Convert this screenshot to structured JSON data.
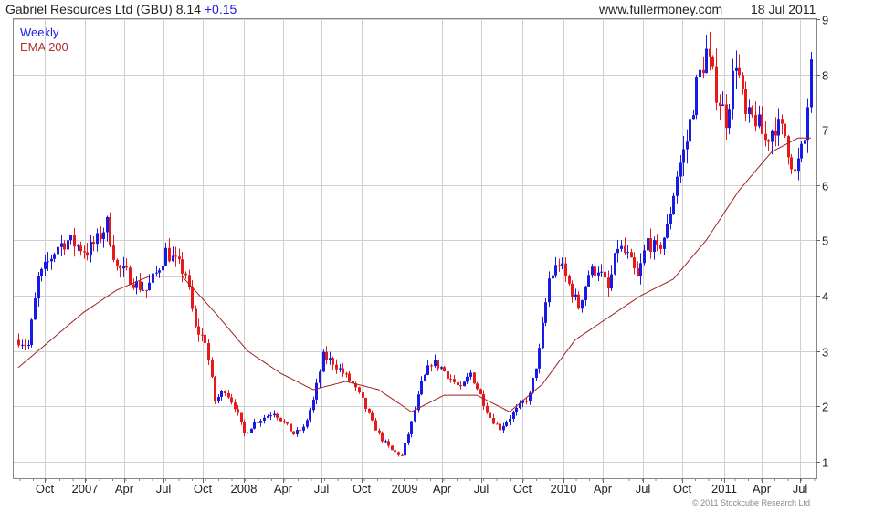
{
  "header": {
    "title": "Gabriel Resources Ltd (GBU) 8.14",
    "change": "+0.15",
    "source": "www.fullermoney.com",
    "date": "18 Jul 2011"
  },
  "footer": {
    "copyright": "© 2011 Stockcube Research Ltd"
  },
  "colors": {
    "up": "#1a1ae6",
    "down": "#e61a1a",
    "ema": "#a02020",
    "grid": "#d0d0d0"
  },
  "chart_data": {
    "type": "candlestick",
    "series": [
      {
        "name": "Weekly"
      },
      {
        "name": "EMA 200"
      }
    ],
    "ylim": [
      0.7,
      9
    ],
    "y_ticks": [
      "1",
      "2",
      "3",
      "4",
      "5",
      "6",
      "7",
      "8",
      "9"
    ],
    "x_tick_labels": [
      "Oct",
      "2007",
      "Apr",
      "Jul",
      "Oct",
      "2008",
      "Apr",
      "Jul",
      "Oct",
      "2009",
      "Apr",
      "Jul",
      "Oct",
      "2010",
      "Apr",
      "Jul",
      "Oct",
      "2011",
      "Apr",
      "Jul"
    ],
    "price_path": [
      [
        0,
        3.2
      ],
      [
        3,
        3.1
      ],
      [
        6,
        4.3
      ],
      [
        9,
        4.6
      ],
      [
        12,
        4.9
      ],
      [
        15,
        5.0
      ],
      [
        18,
        4.9
      ],
      [
        21,
        4.8
      ],
      [
        24,
        5.0
      ],
      [
        27,
        5.3
      ],
      [
        30,
        4.5
      ],
      [
        33,
        4.4
      ],
      [
        36,
        4.2
      ],
      [
        39,
        4.1
      ],
      [
        42,
        4.4
      ],
      [
        45,
        4.8
      ],
      [
        48,
        4.6
      ],
      [
        51,
        4.4
      ],
      [
        54,
        3.4
      ],
      [
        57,
        3.2
      ],
      [
        60,
        2.1
      ],
      [
        63,
        2.3
      ],
      [
        66,
        2.0
      ],
      [
        69,
        1.5
      ],
      [
        72,
        1.7
      ],
      [
        75,
        1.8
      ],
      [
        78,
        1.9
      ],
      [
        81,
        1.7
      ],
      [
        84,
        1.5
      ],
      [
        87,
        1.6
      ],
      [
        90,
        2.1
      ],
      [
        93,
        2.9
      ],
      [
        96,
        2.8
      ],
      [
        99,
        2.6
      ],
      [
        102,
        2.4
      ],
      [
        105,
        2.1
      ],
      [
        108,
        1.7
      ],
      [
        111,
        1.4
      ],
      [
        114,
        1.2
      ],
      [
        117,
        1.1
      ],
      [
        120,
        1.7
      ],
      [
        123,
        2.4
      ],
      [
        126,
        2.8
      ],
      [
        129,
        2.7
      ],
      [
        132,
        2.5
      ],
      [
        135,
        2.3
      ],
      [
        138,
        2.6
      ],
      [
        141,
        2.2
      ],
      [
        144,
        1.8
      ],
      [
        147,
        1.6
      ],
      [
        150,
        1.8
      ],
      [
        153,
        2.0
      ],
      [
        156,
        2.2
      ],
      [
        159,
        3.0
      ],
      [
        162,
        4.3
      ],
      [
        165,
        4.6
      ],
      [
        168,
        4.2
      ],
      [
        171,
        3.8
      ],
      [
        174,
        4.4
      ],
      [
        177,
        4.5
      ],
      [
        180,
        4.1
      ],
      [
        183,
        4.9
      ],
      [
        186,
        4.7
      ],
      [
        189,
        4.3
      ],
      [
        192,
        5.0
      ],
      [
        195,
        4.8
      ],
      [
        198,
        5.2
      ],
      [
        201,
        6.2
      ],
      [
        204,
        6.8
      ],
      [
        207,
        7.8
      ],
      [
        210,
        8.4
      ],
      [
        213,
        7.7
      ],
      [
        216,
        7.2
      ],
      [
        219,
        8.3
      ],
      [
        222,
        7.2
      ],
      [
        225,
        7.2
      ],
      [
        228,
        6.8
      ],
      [
        231,
        7.1
      ],
      [
        234,
        6.9
      ],
      [
        237,
        6.2
      ],
      [
        240,
        6.8
      ],
      [
        242,
        8.1
      ]
    ],
    "ema_path": [
      [
        0,
        2.7
      ],
      [
        10,
        3.2
      ],
      [
        20,
        3.7
      ],
      [
        30,
        4.1
      ],
      [
        40,
        4.35
      ],
      [
        50,
        4.35
      ],
      [
        60,
        3.7
      ],
      [
        70,
        3.0
      ],
      [
        80,
        2.6
      ],
      [
        90,
        2.3
      ],
      [
        100,
        2.45
      ],
      [
        110,
        2.3
      ],
      [
        120,
        1.9
      ],
      [
        130,
        2.2
      ],
      [
        140,
        2.2
      ],
      [
        150,
        1.9
      ],
      [
        160,
        2.4
      ],
      [
        170,
        3.2
      ],
      [
        180,
        3.6
      ],
      [
        190,
        4.0
      ],
      [
        200,
        4.3
      ],
      [
        210,
        5.0
      ],
      [
        220,
        5.9
      ],
      [
        230,
        6.6
      ],
      [
        238,
        6.85
      ],
      [
        242,
        6.85
      ]
    ]
  }
}
